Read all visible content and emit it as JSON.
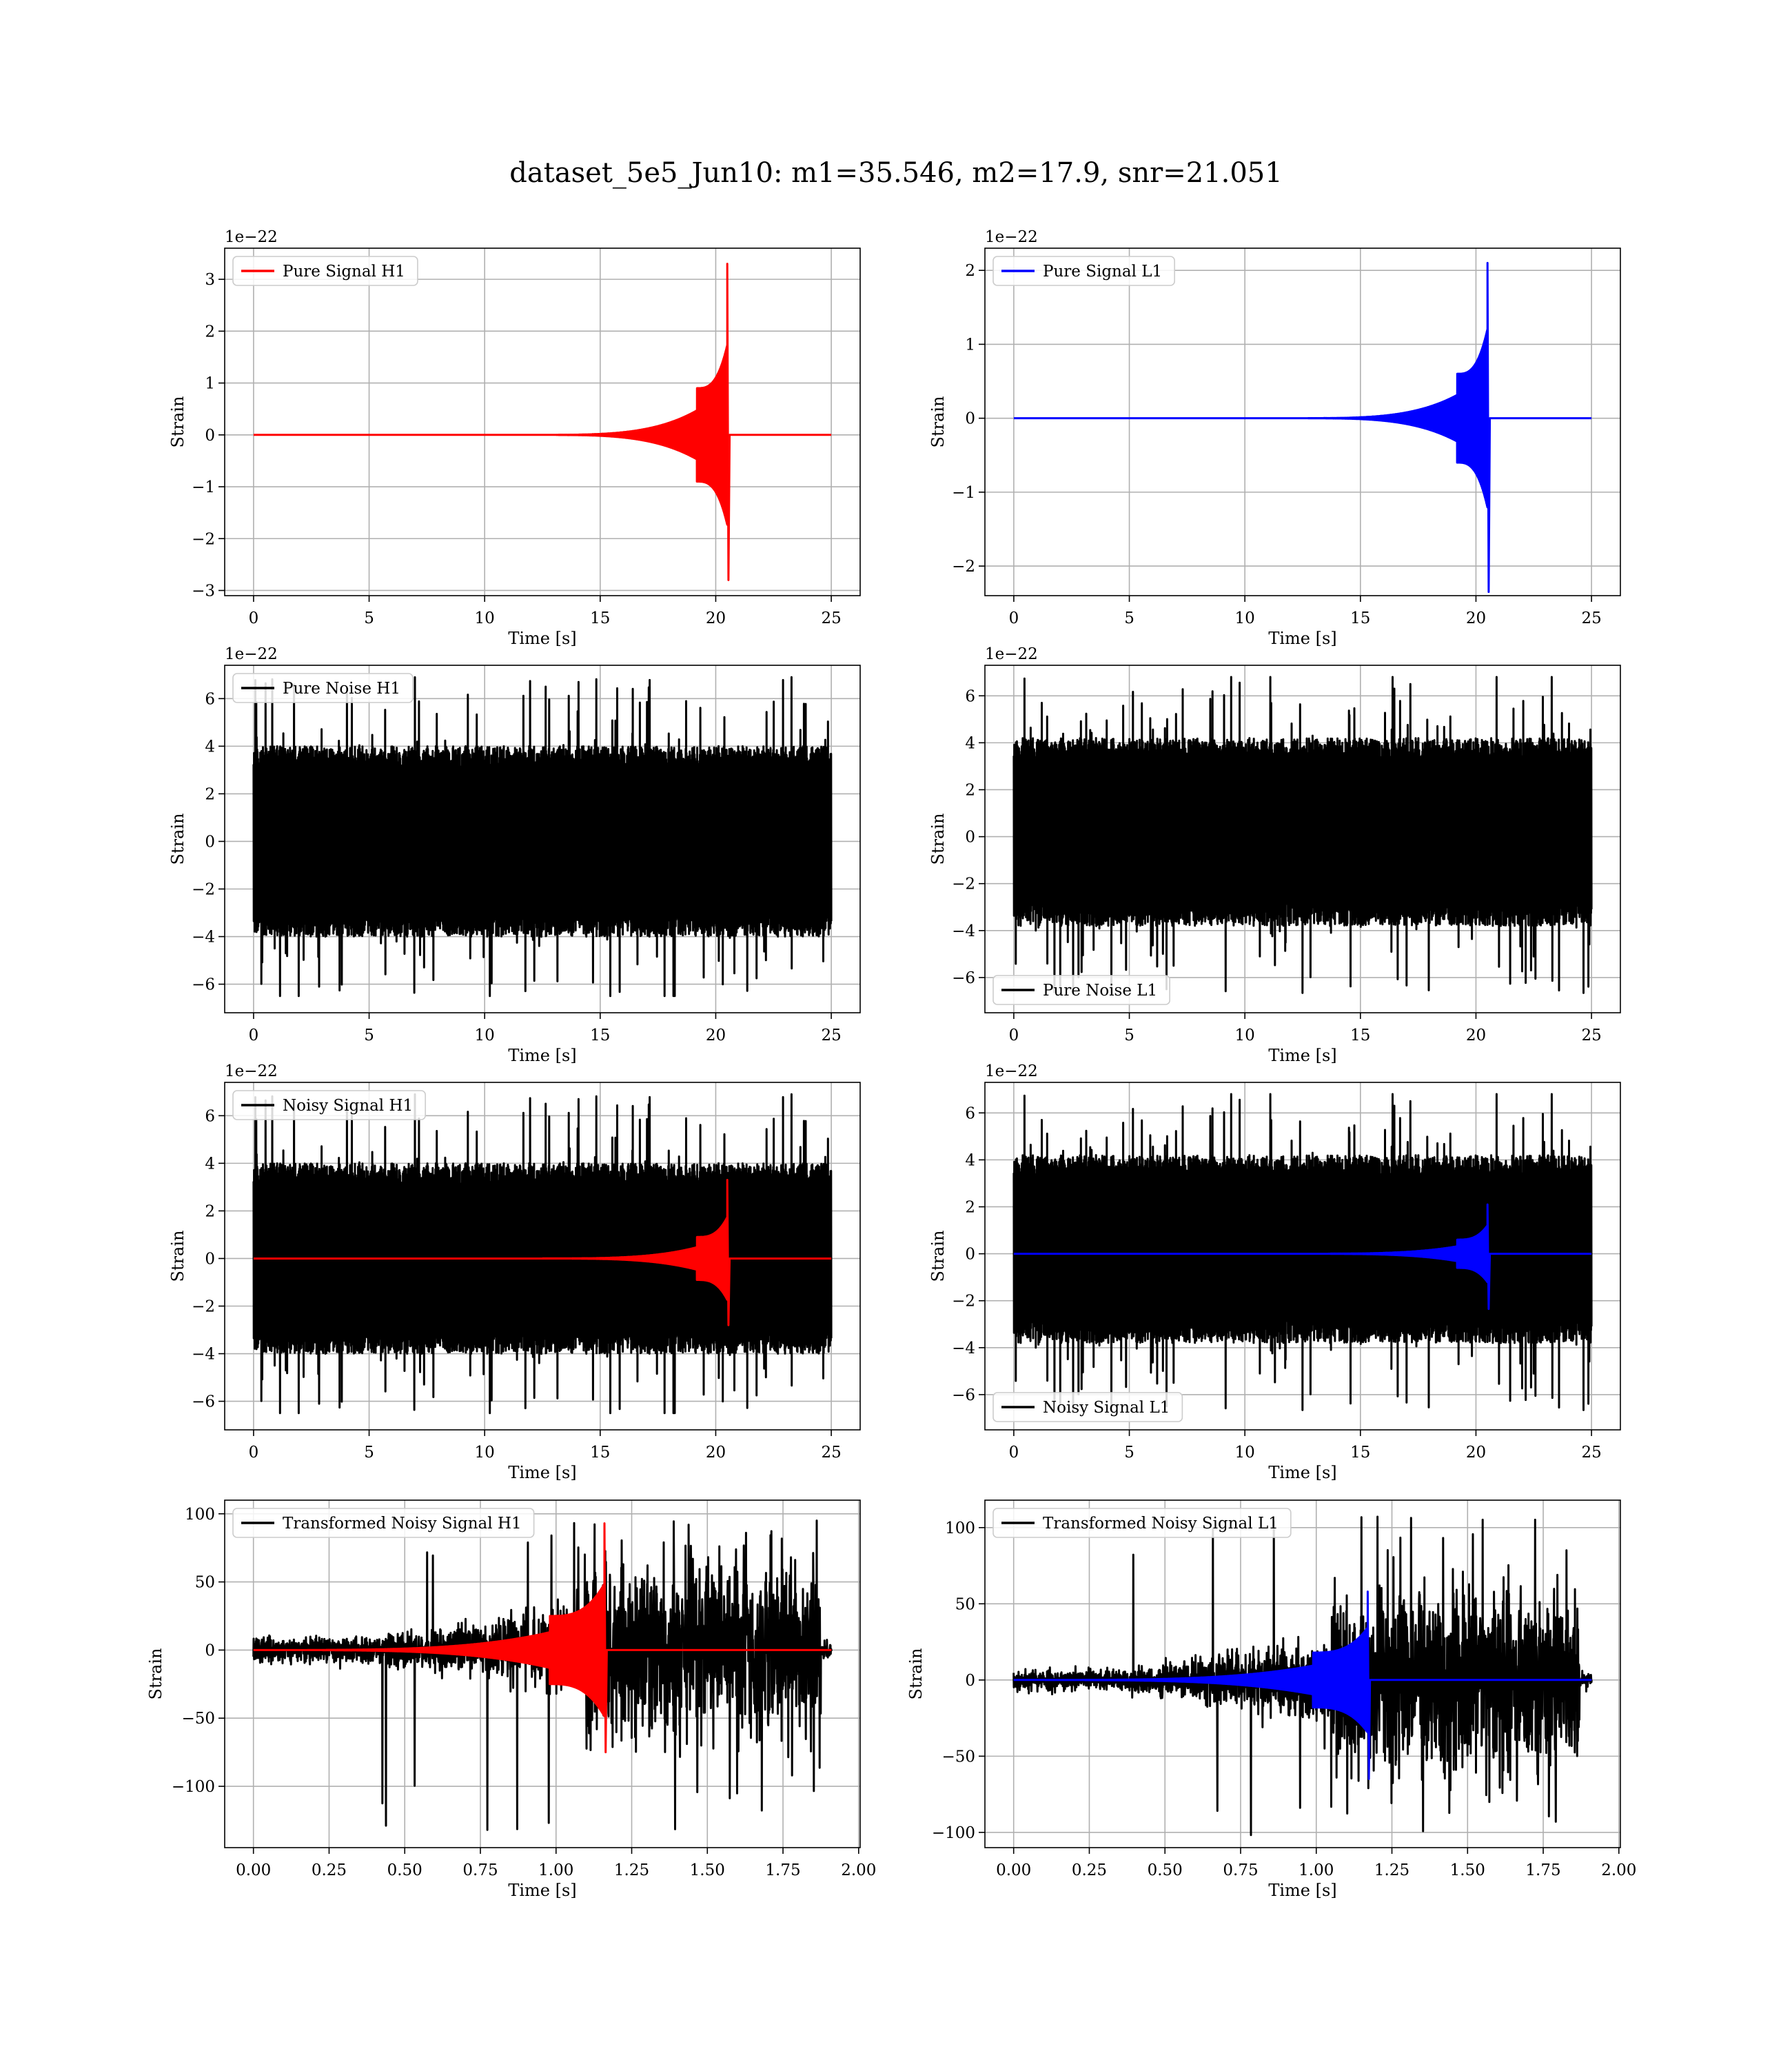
{
  "figure": {
    "title": "dataset_5e5_Jun10: m1=35.546, m2=17.9, snr=21.051"
  },
  "colors": {
    "h1_signal": "#ff0000",
    "l1_signal": "#0000ff",
    "noise": "#000000",
    "grid": "#b0b0b0"
  },
  "chart_data": [
    {
      "id": "pure-signal-h1",
      "type": "line",
      "title": "",
      "xlabel": "Time [s]",
      "ylabel": "Strain",
      "offset_text": "1e−22",
      "xlim": [
        -1.25,
        26.25
      ],
      "ylim": [
        -3.1,
        3.6
      ],
      "xticks": [
        0,
        5,
        10,
        15,
        20,
        25
      ],
      "yticks": [
        -3,
        -2,
        -1,
        0,
        1,
        2,
        3
      ],
      "legend": {
        "location": "upper-left",
        "entries": [
          {
            "name": "Pure Signal H1",
            "color": "#ff0000"
          }
        ]
      },
      "grid": true,
      "series": [
        {
          "name": "Pure Signal H1",
          "color": "#ff0000",
          "kind": "chirp",
          "x_range": [
            0,
            25
          ],
          "merger_time": 20.5,
          "peak_pos": 3.3,
          "peak_neg": -2.8,
          "amp_mid": 0.9
        }
      ]
    },
    {
      "id": "pure-signal-l1",
      "type": "line",
      "title": "",
      "xlabel": "Time [s]",
      "ylabel": "Strain",
      "offset_text": "1e−22",
      "xlim": [
        -1.25,
        26.25
      ],
      "ylim": [
        -2.4,
        2.3
      ],
      "xticks": [
        0,
        5,
        10,
        15,
        20,
        25
      ],
      "yticks": [
        -2,
        -1,
        0,
        1,
        2
      ],
      "legend": {
        "location": "upper-left",
        "entries": [
          {
            "name": "Pure Signal L1",
            "color": "#0000ff"
          }
        ]
      },
      "grid": true,
      "series": [
        {
          "name": "Pure Signal L1",
          "color": "#0000ff",
          "kind": "chirp",
          "x_range": [
            0,
            25
          ],
          "merger_time": 20.5,
          "peak_pos": 2.1,
          "peak_neg": -2.35,
          "amp_mid": 0.6
        }
      ]
    },
    {
      "id": "pure-noise-h1",
      "type": "line",
      "title": "",
      "xlabel": "Time [s]",
      "ylabel": "Strain",
      "offset_text": "1e−22",
      "xlim": [
        -1.25,
        26.25
      ],
      "ylim": [
        -7.2,
        7.4
      ],
      "xticks": [
        0,
        5,
        10,
        15,
        20,
        25
      ],
      "yticks": [
        -6,
        -4,
        -2,
        0,
        2,
        4,
        6
      ],
      "legend": {
        "location": "upper-left",
        "entries": [
          {
            "name": "Pure Noise H1",
            "color": "#000000"
          }
        ]
      },
      "grid": true,
      "series": [
        {
          "name": "Pure Noise H1",
          "color": "#000000",
          "kind": "noise",
          "x_range": [
            0,
            25
          ],
          "band": [
            -4.0,
            4.0
          ],
          "max": 6.9,
          "min": -6.5,
          "seed": 11
        }
      ]
    },
    {
      "id": "pure-noise-l1",
      "type": "line",
      "title": "",
      "xlabel": "Time [s]",
      "ylabel": "Strain",
      "offset_text": "1e−22",
      "xlim": [
        -1.25,
        26.25
      ],
      "ylim": [
        -7.5,
        7.3
      ],
      "xticks": [
        0,
        5,
        10,
        15,
        20,
        25
      ],
      "yticks": [
        -6,
        -4,
        -2,
        0,
        2,
        4,
        6
      ],
      "legend": {
        "location": "lower-left",
        "entries": [
          {
            "name": "Pure Noise L1",
            "color": "#000000"
          }
        ]
      },
      "grid": true,
      "series": [
        {
          "name": "Pure Noise L1",
          "color": "#000000",
          "kind": "noise",
          "x_range": [
            0,
            25
          ],
          "band": [
            -3.8,
            4.2
          ],
          "max": 6.8,
          "min": -6.7,
          "seed": 23
        }
      ]
    },
    {
      "id": "noisy-signal-h1",
      "type": "line",
      "title": "",
      "xlabel": "Time [s]",
      "ylabel": "Strain",
      "offset_text": "1e−22",
      "xlim": [
        -1.25,
        26.25
      ],
      "ylim": [
        -7.2,
        7.4
      ],
      "xticks": [
        0,
        5,
        10,
        15,
        20,
        25
      ],
      "yticks": [
        -6,
        -4,
        -2,
        0,
        2,
        4,
        6
      ],
      "legend": {
        "location": "upper-left",
        "entries": [
          {
            "name": "Noisy Signal H1",
            "color": "#000000"
          }
        ]
      },
      "grid": true,
      "series": [
        {
          "name": "Noisy Signal H1",
          "color": "#000000",
          "kind": "noise",
          "x_range": [
            0,
            25
          ],
          "band": [
            -4.0,
            4.0
          ],
          "max": 6.9,
          "min": -6.5,
          "seed": 11
        },
        {
          "name": "",
          "color": "#ff0000",
          "kind": "chirp",
          "x_range": [
            0,
            25
          ],
          "merger_time": 20.5,
          "peak_pos": 3.3,
          "peak_neg": -2.8,
          "amp_mid": 0.9
        }
      ]
    },
    {
      "id": "noisy-signal-l1",
      "type": "line",
      "title": "",
      "xlabel": "Time [s]",
      "ylabel": "Strain",
      "offset_text": "1e−22",
      "xlim": [
        -1.25,
        26.25
      ],
      "ylim": [
        -7.5,
        7.3
      ],
      "xticks": [
        0,
        5,
        10,
        15,
        20,
        25
      ],
      "yticks": [
        -6,
        -4,
        -2,
        0,
        2,
        4,
        6
      ],
      "legend": {
        "location": "lower-left",
        "entries": [
          {
            "name": "Noisy Signal L1",
            "color": "#000000"
          }
        ]
      },
      "grid": true,
      "series": [
        {
          "name": "Noisy Signal L1",
          "color": "#000000",
          "kind": "noise",
          "x_range": [
            0,
            25
          ],
          "band": [
            -3.8,
            4.2
          ],
          "max": 6.8,
          "min": -6.7,
          "seed": 23
        },
        {
          "name": "",
          "color": "#0000ff",
          "kind": "chirp",
          "x_range": [
            0,
            25
          ],
          "merger_time": 20.5,
          "peak_pos": 2.1,
          "peak_neg": -2.35,
          "amp_mid": 0.6
        }
      ]
    },
    {
      "id": "transformed-noisy-signal-h1",
      "type": "line",
      "title": "",
      "xlabel": "Time [s]",
      "ylabel": "Strain",
      "offset_text": "",
      "xlim": [
        -0.095,
        2.005
      ],
      "ylim": [
        -145,
        110
      ],
      "xticks": [
        0.0,
        0.25,
        0.5,
        0.75,
        1.0,
        1.25,
        1.5,
        1.75,
        2.0
      ],
      "xticklabels": [
        "0.00",
        "0.25",
        "0.50",
        "0.75",
        "1.00",
        "1.25",
        "1.50",
        "1.75",
        "2.00"
      ],
      "yticks": [
        -100,
        -50,
        0,
        50,
        100
      ],
      "legend": {
        "location": "upper-left",
        "entries": [
          {
            "name": "Transformed Noisy Signal H1",
            "color": "#000000"
          }
        ]
      },
      "grid": true,
      "series": [
        {
          "name": "Transformed Noisy Signal H1",
          "color": "#000000",
          "kind": "whitened",
          "x_range": [
            0,
            1.91
          ],
          "end_time": 1.875,
          "early_amp": 8,
          "ramp_start": 0.4,
          "ramp_end": 1.1,
          "late_amp": 55,
          "max": 95,
          "min": -135,
          "seed": 37
        },
        {
          "name": "",
          "color": "#ff0000",
          "kind": "chirp",
          "x_range": [
            0,
            1.91
          ],
          "merger_time": 1.16,
          "peak_pos": 93,
          "peak_neg": -75,
          "amp_mid": 25,
          "chirp_width": 0.55
        }
      ]
    },
    {
      "id": "transformed-noisy-signal-l1",
      "type": "line",
      "title": "",
      "xlabel": "Time [s]",
      "ylabel": "Strain",
      "offset_text": "",
      "xlim": [
        -0.095,
        2.005
      ],
      "ylim": [
        -110,
        118
      ],
      "xticks": [
        0.0,
        0.25,
        0.5,
        0.75,
        1.0,
        1.25,
        1.5,
        1.75,
        2.0
      ],
      "xticklabels": [
        "0.00",
        "0.25",
        "0.50",
        "0.75",
        "1.00",
        "1.25",
        "1.50",
        "1.75",
        "2.00"
      ],
      "yticks": [
        -100,
        -50,
        0,
        50,
        100
      ],
      "legend": {
        "location": "upper-left",
        "entries": [
          {
            "name": "Transformed Noisy Signal L1",
            "color": "#000000"
          }
        ]
      },
      "grid": true,
      "series": [
        {
          "name": "Transformed Noisy Signal L1",
          "color": "#000000",
          "kind": "whitened",
          "x_range": [
            0,
            1.91
          ],
          "end_time": 1.87,
          "early_amp": 6,
          "ramp_start": 0.35,
          "ramp_end": 1.05,
          "late_amp": 50,
          "max": 110,
          "min": -103,
          "seed": 53
        },
        {
          "name": "",
          "color": "#0000ff",
          "kind": "chirp",
          "x_range": [
            0,
            1.91
          ],
          "merger_time": 1.17,
          "peak_pos": 58,
          "peak_neg": -65,
          "amp_mid": 18,
          "chirp_width": 0.55
        }
      ]
    }
  ]
}
